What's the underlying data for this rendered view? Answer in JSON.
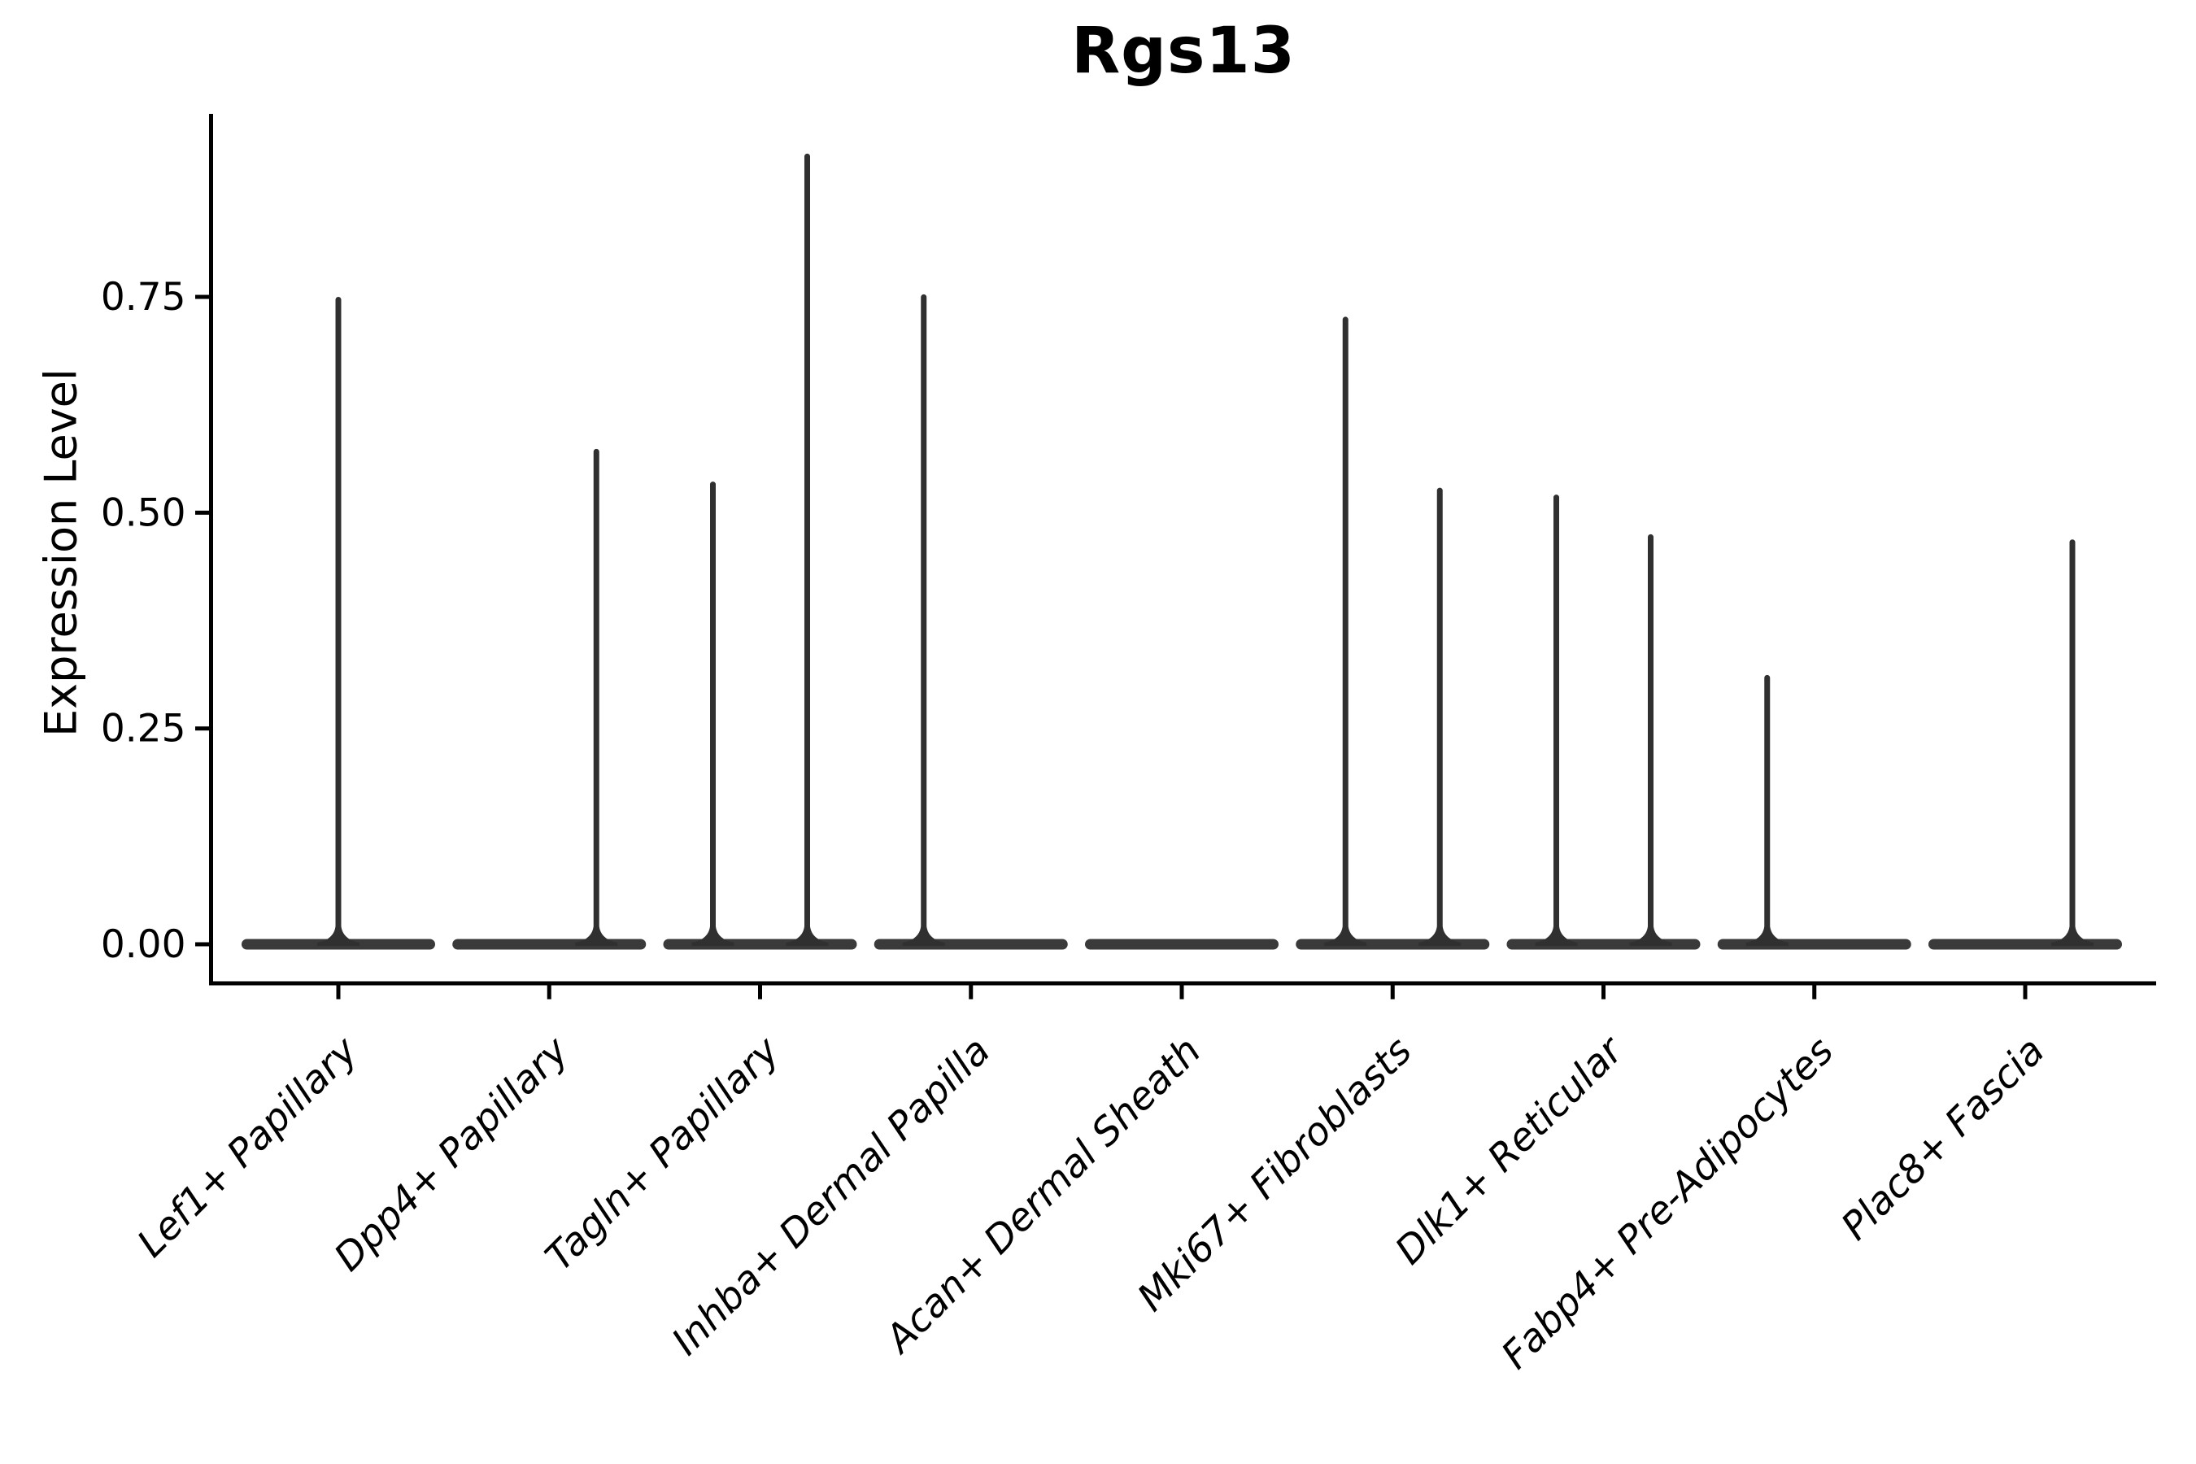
{
  "title": "Rgs13",
  "axes": {
    "ylabel": "Expression Level",
    "xlabel": ""
  },
  "colors": {
    "ink": "#000000",
    "violin_fill": "#3a3a3a",
    "spike_fill": "#303030"
  },
  "chart_data": {
    "type": "violin",
    "title": "Rgs13",
    "xlabel": "",
    "ylabel": "Expression Level",
    "ylim": [
      -0.045,
      0.962
    ],
    "yticks": [
      0.0,
      0.25,
      0.5,
      0.75
    ],
    "grid": false,
    "legend": "none",
    "note": "Single-cell expression violin plot; nearly all density is a flat bar at 0 with thin spikes (sparse expressing cells) reaching the listed maxima. Some categories contain two side-by-side split violins.",
    "categories": [
      "Lef1+ Papillary",
      "Dpp4+ Papillary",
      "Tagln+ Papillary",
      "Inhba+ Dermal Papilla",
      "Acan+ Dermal Sheath",
      "Mki67+ Fibroblasts",
      "Dlk1+ Reticular",
      "Fabp4+ Pre-Adipocytes",
      "Plac8+ Fascia"
    ],
    "series": [
      {
        "category": "Lef1+ Papillary",
        "baseline_at_zero": true,
        "spikes": [
          {
            "position": "center",
            "max": 0.75
          }
        ]
      },
      {
        "category": "Dpp4+ Papillary",
        "baseline_at_zero": true,
        "spikes": [
          {
            "position": "right",
            "max": 0.574
          }
        ]
      },
      {
        "category": "Tagln+ Papillary",
        "baseline_at_zero": true,
        "spikes": [
          {
            "position": "left",
            "max": 0.536
          },
          {
            "position": "right",
            "max": 0.916
          }
        ]
      },
      {
        "category": "Inhba+ Dermal Papilla",
        "baseline_at_zero": true,
        "spikes": [
          {
            "position": "left",
            "max": 0.753
          }
        ]
      },
      {
        "category": "Acan+ Dermal Sheath",
        "baseline_at_zero": true,
        "spikes": []
      },
      {
        "category": "Mki67+ Fibroblasts",
        "baseline_at_zero": true,
        "spikes": [
          {
            "position": "left",
            "max": 0.727
          },
          {
            "position": "right",
            "max": 0.529
          }
        ]
      },
      {
        "category": "Dlk1+ Reticular",
        "baseline_at_zero": true,
        "spikes": [
          {
            "position": "left",
            "max": 0.521
          },
          {
            "position": "right",
            "max": 0.475
          }
        ]
      },
      {
        "category": "Fabp4+ Pre-Adipocytes",
        "baseline_at_zero": true,
        "spikes": [
          {
            "position": "left",
            "max": 0.312
          }
        ]
      },
      {
        "category": "Plac8+ Fascia",
        "baseline_at_zero": true,
        "spikes": [
          {
            "position": "right",
            "max": 0.469
          }
        ]
      }
    ]
  }
}
